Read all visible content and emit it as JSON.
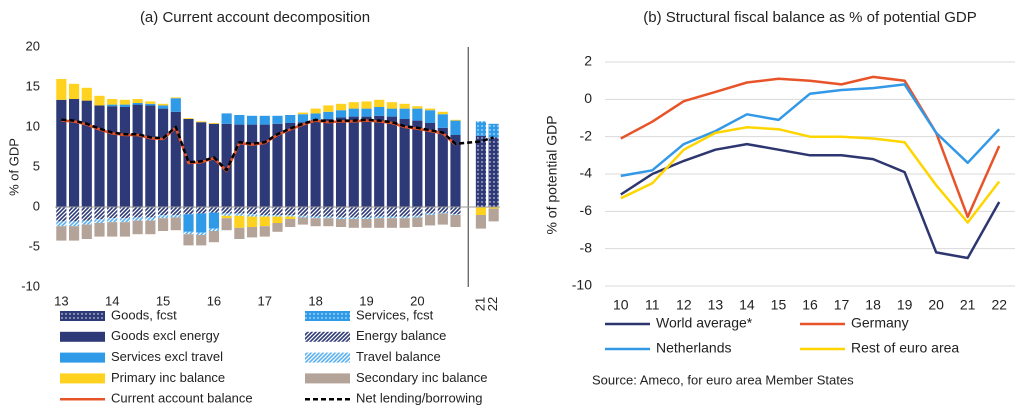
{
  "chart_data": [
    {
      "type": "bar",
      "stacked": true,
      "title": "(a) Current account decomposition",
      "y_label": "% of GDP",
      "categories": [
        "13",
        null,
        null,
        null,
        "14",
        null,
        null,
        null,
        "15",
        null,
        null,
        null,
        "16",
        null,
        null,
        null,
        "17",
        null,
        null,
        null,
        "18",
        null,
        null,
        null,
        "19",
        null,
        null,
        null,
        "20",
        null,
        null,
        null,
        "21",
        "22"
      ],
      "ylim": [
        -10,
        20
      ],
      "yticks": [
        -10,
        -5,
        0,
        5,
        10,
        15,
        20
      ],
      "grid": false,
      "series": [
        {
          "name": "Goods, fcst",
          "color": "#2e3a78",
          "pattern": "dots",
          "values": [
            null,
            null,
            null,
            null,
            null,
            null,
            null,
            null,
            null,
            null,
            null,
            null,
            null,
            null,
            null,
            null,
            null,
            null,
            null,
            null,
            null,
            null,
            null,
            null,
            null,
            null,
            null,
            null,
            null,
            null,
            null,
            null,
            8.9,
            8.7
          ]
        },
        {
          "name": "Services, fcst",
          "color": "#2f9ae8",
          "pattern": "dots",
          "values": [
            null,
            null,
            null,
            null,
            null,
            null,
            null,
            null,
            null,
            null,
            null,
            null,
            null,
            null,
            null,
            null,
            null,
            null,
            null,
            null,
            null,
            null,
            null,
            null,
            null,
            null,
            null,
            null,
            null,
            null,
            null,
            null,
            1.8,
            1.7
          ]
        },
        {
          "name": "Goods excl energy",
          "color": "#2e3a78",
          "values": [
            13.4,
            13.5,
            13.3,
            12.7,
            12.6,
            12.5,
            12.8,
            12.7,
            12.3,
            11.9,
            11.0,
            10.6,
            10.4,
            10.4,
            10.3,
            10.3,
            10.3,
            10.4,
            10.5,
            10.6,
            10.9,
            11.0,
            11.2,
            11.3,
            11.3,
            11.4,
            11.3,
            11.0,
            10.8,
            10.5,
            9.9,
            9.0,
            null,
            null
          ]
        },
        {
          "name": "Energy balance",
          "color": "#2e3a78",
          "pattern": "hatch",
          "values": [
            -1.8,
            -1.8,
            -1.7,
            -1.5,
            -1.4,
            -1.4,
            -1.3,
            -1.3,
            -1.0,
            -1.0,
            -0.9,
            -0.8,
            -0.7,
            -0.8,
            -0.8,
            -0.9,
            -1.0,
            -1.0,
            -1.0,
            -1.1,
            -1.2,
            -1.2,
            -1.3,
            -1.3,
            -1.3,
            -1.2,
            -1.2,
            -1.2,
            -1.1,
            -0.8,
            -0.7,
            -0.9,
            null,
            null
          ]
        },
        {
          "name": "Services excl travel",
          "color": "#2f9ae8",
          "values": [
            0,
            0,
            0,
            0,
            0.2,
            0.3,
            0.2,
            0.2,
            0.4,
            1.7,
            -2.2,
            -2.4,
            -2.0,
            1.3,
            1.2,
            1.1,
            1.1,
            1.0,
            1.0,
            1.0,
            0.8,
            0.9,
            0.9,
            1.0,
            1.0,
            1.1,
            1.0,
            1.3,
            1.5,
            1.6,
            1.7,
            1.8,
            null,
            null
          ]
        },
        {
          "name": "Travel balance",
          "color": "#5ab0f0",
          "pattern": "hatch",
          "values": [
            -0.6,
            -0.6,
            -0.5,
            -0.5,
            -0.5,
            -0.5,
            -0.4,
            -0.4,
            -0.4,
            -0.3,
            -0.3,
            -0.3,
            -0.3,
            -0.3,
            -0.3,
            -0.3,
            -0.2,
            -0.2,
            -0.2,
            -0.2,
            -0.2,
            -0.2,
            -0.2,
            -0.2,
            -0.2,
            -0.2,
            -0.2,
            -0.2,
            -0.2,
            -0.2,
            -0.1,
            -0.1,
            null,
            null
          ]
        },
        {
          "name": "Primary inc balance",
          "color": "#ffd21f",
          "values": [
            2.6,
            1.9,
            1.6,
            1.2,
            0.7,
            0.6,
            0.5,
            0.3,
            0.2,
            0.1,
            0.1,
            0.1,
            0.1,
            -0.3,
            -1.5,
            -1.3,
            -1.2,
            -0.8,
            -0.3,
            0.2,
            0.6,
            0.8,
            0.8,
            0.8,
            0.9,
            0.9,
            0.8,
            0.6,
            0.3,
            0.2,
            0.3,
            0.1,
            -1.0,
            -0.2
          ]
        },
        {
          "name": "Secondary inc balance",
          "color": "#b3a398",
          "values": [
            -1.8,
            -1.8,
            -1.8,
            -1.7,
            -1.8,
            -1.8,
            -1.7,
            -1.7,
            -1.6,
            -1.6,
            -1.4,
            -1.3,
            -1.4,
            -1.5,
            -1.4,
            -1.3,
            -1.3,
            -1.1,
            -1.0,
            -0.9,
            -1.0,
            -1.0,
            -1.0,
            -1.1,
            -1.1,
            -1.2,
            -1.2,
            -1.2,
            -1.2,
            -1.3,
            -1.4,
            -1.5,
            -1.7,
            -1.6
          ]
        },
        {
          "name": "Current account balance",
          "type": "line",
          "color": "#e8542a",
          "dashed": false,
          "values": [
            10.8,
            10.7,
            10.3,
            9.7,
            9.2,
            9.0,
            9.0,
            8.6,
            8.5,
            9.9,
            5.5,
            5.6,
            6.1,
            4.5,
            8.0,
            7.8,
            8.0,
            9.0,
            9.7,
            10.3,
            10.8,
            10.6,
            10.7,
            10.7,
            10.8,
            10.7,
            10.5,
            10.0,
            9.8,
            9.5,
            9.2,
            7.8,
            null,
            null
          ]
        },
        {
          "name": "Net lending/borrowing",
          "type": "line",
          "color": "#000000",
          "dashed": true,
          "values": [
            10.9,
            10.8,
            10.4,
            9.8,
            9.3,
            9.1,
            9.1,
            8.7,
            8.6,
            10.0,
            5.6,
            5.7,
            6.2,
            4.6,
            8.1,
            7.9,
            8.1,
            9.1,
            9.8,
            10.4,
            10.9,
            10.7,
            10.8,
            10.8,
            10.9,
            10.8,
            10.6,
            10.1,
            9.9,
            9.6,
            9.3,
            7.9,
            8.2,
            8.7
          ]
        }
      ]
    },
    {
      "type": "line",
      "title": "(b) Structural fiscal balance as % of potential GDP",
      "y_label": "% of potential GDP",
      "categories": [
        "10",
        "11",
        "12",
        "13",
        "14",
        "15",
        "16",
        "17",
        "18",
        "19",
        "20",
        "21",
        "22"
      ],
      "ylim": [
        -10,
        2
      ],
      "yticks": [
        -10,
        -8,
        -6,
        -4,
        -2,
        0,
        2
      ],
      "grid": true,
      "series": [
        {
          "name": "World average*",
          "color": "#2e3670",
          "values": [
            -5.1,
            -4.0,
            -3.3,
            -2.7,
            -2.4,
            -2.7,
            -3.0,
            -3.0,
            -3.2,
            -3.9,
            -8.2,
            -8.5,
            -5.5
          ]
        },
        {
          "name": "Germany",
          "color": "#e8542a",
          "values": [
            -2.1,
            -1.2,
            -0.1,
            0.4,
            0.9,
            1.1,
            1.0,
            0.8,
            1.2,
            1.0,
            -1.8,
            -6.3,
            -2.5
          ]
        },
        {
          "name": "Netherlands",
          "color": "#3399e6",
          "values": [
            -4.1,
            -3.8,
            -2.4,
            -1.7,
            -0.8,
            -1.1,
            0.3,
            0.5,
            0.6,
            0.8,
            -1.8,
            -3.4,
            -1.6
          ]
        },
        {
          "name": "Rest of euro area",
          "color": "#ffd500",
          "values": [
            -5.3,
            -4.5,
            -2.7,
            -1.8,
            -1.5,
            -1.6,
            -2.0,
            -2.0,
            -2.1,
            -2.3,
            -4.6,
            -6.6,
            -4.4
          ]
        }
      ],
      "source": "Source: Ameco, for euro area Member States"
    }
  ]
}
